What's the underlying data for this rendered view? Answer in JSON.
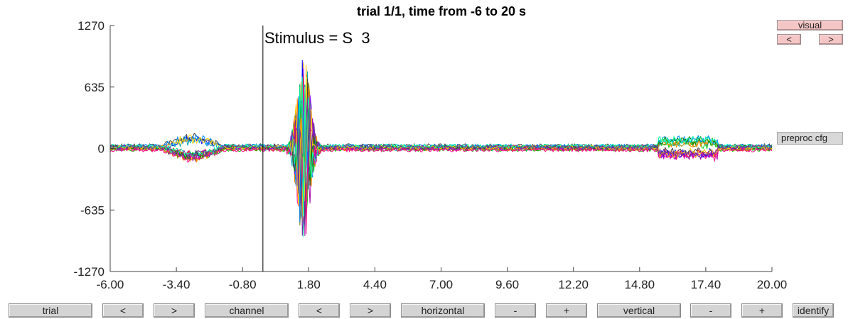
{
  "title": "trial 1/1, time from -6 to 20 s",
  "event_label": "Stimulus = S  3",
  "side_label": "preproc cfg",
  "visual_buttons": {
    "visual": "visual",
    "prev": "<",
    "next": ">"
  },
  "bottom_buttons": [
    {
      "id": "trial",
      "label": "trial"
    },
    {
      "id": "trial-prev",
      "label": "<"
    },
    {
      "id": "trial-next",
      "label": ">"
    },
    {
      "id": "channel",
      "label": "channel"
    },
    {
      "id": "channel-prev",
      "label": "<"
    },
    {
      "id": "channel-next",
      "label": ">"
    },
    {
      "id": "horizontal",
      "label": "horizontal"
    },
    {
      "id": "horizontal-minus",
      "label": "-"
    },
    {
      "id": "horizontal-plus",
      "label": "+"
    },
    {
      "id": "vertical",
      "label": "vertical"
    },
    {
      "id": "vertical-minus",
      "label": "-"
    },
    {
      "id": "vertical-plus",
      "label": "+"
    },
    {
      "id": "identify",
      "label": "identify"
    }
  ],
  "chart_data": {
    "type": "line",
    "title": "trial 1/1, time from -6 to 20 s",
    "xlim": [
      -6,
      20
    ],
    "ylim": [
      -1270,
      1270
    ],
    "x_ticks": [
      "-6.00",
      "-3.40",
      "-0.80",
      "1.80",
      "4.40",
      "7.00",
      "9.60",
      "12.20",
      "14.80",
      "17.40",
      "20.00"
    ],
    "y_ticks": [
      "1270",
      "635",
      "0",
      "-635",
      "-1270"
    ],
    "event_marker_x": 0,
    "series_colors": [
      "#0000ff",
      "#00cc00",
      "#ff0000",
      "#00aaaa",
      "#aa00aa",
      "#888800",
      "#444444",
      "#ff8800",
      "#8800ff",
      "#0088ff",
      "#ff0088",
      "#008800",
      "#ffcc00",
      "#00ffaa",
      "#7030a0"
    ]
  }
}
